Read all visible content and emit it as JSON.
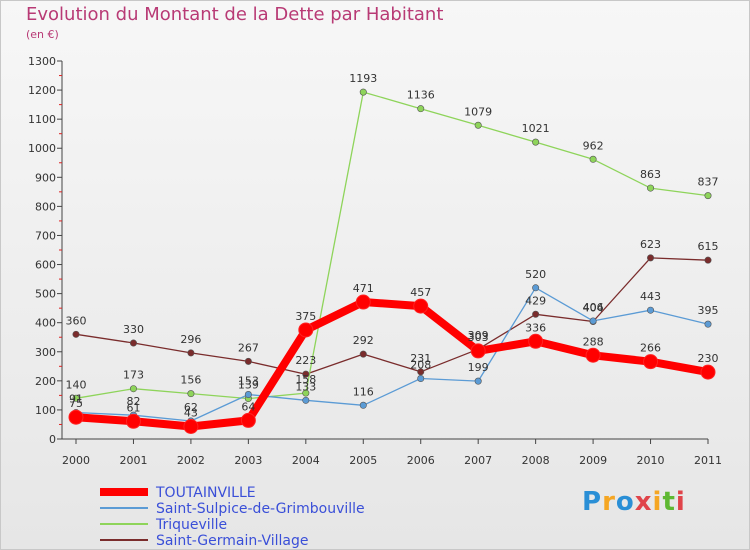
{
  "title": "Evolution du Montant de la Dette par Habitant",
  "subtitle": "(en €)",
  "logo": "Proxiti",
  "chart_data": {
    "type": "line",
    "title": "Evolution du Montant de la Dette par Habitant",
    "ylabel": "(en €)",
    "ylim": [
      0,
      1300
    ],
    "yticks": [
      0,
      100,
      200,
      300,
      400,
      500,
      600,
      700,
      800,
      900,
      1000,
      1100,
      1200,
      1300
    ],
    "grid": false,
    "legend_position": "bottom-left",
    "x": [
      "2000",
      "2001",
      "2002",
      "2003",
      "2004",
      "2005",
      "2006",
      "2007",
      "2008",
      "2009",
      "2010",
      "2011"
    ],
    "series": [
      {
        "name": "TOUTAINVILLE",
        "color": "#ff0000",
        "values": [
          75,
          61,
          43,
          64,
          375,
          471,
          457,
          303,
          336,
          288,
          266,
          230
        ]
      },
      {
        "name": "Saint-Sulpice-de-Grimbouville",
        "color": "#5b9bd5",
        "values": [
          91,
          82,
          62,
          153,
          133,
          116,
          208,
          199,
          520,
          406,
          443,
          395
        ]
      },
      {
        "name": "Triqueville",
        "color": "#8ed45a",
        "values": [
          140,
          173,
          156,
          139,
          158,
          1193,
          1136,
          1079,
          1021,
          962,
          863,
          837
        ]
      },
      {
        "name": "Saint-Germain-Village",
        "color": "#7a2c2c",
        "values": [
          360,
          330,
          296,
          267,
          223,
          292,
          231,
          309,
          429,
          404,
          623,
          615
        ]
      }
    ]
  }
}
